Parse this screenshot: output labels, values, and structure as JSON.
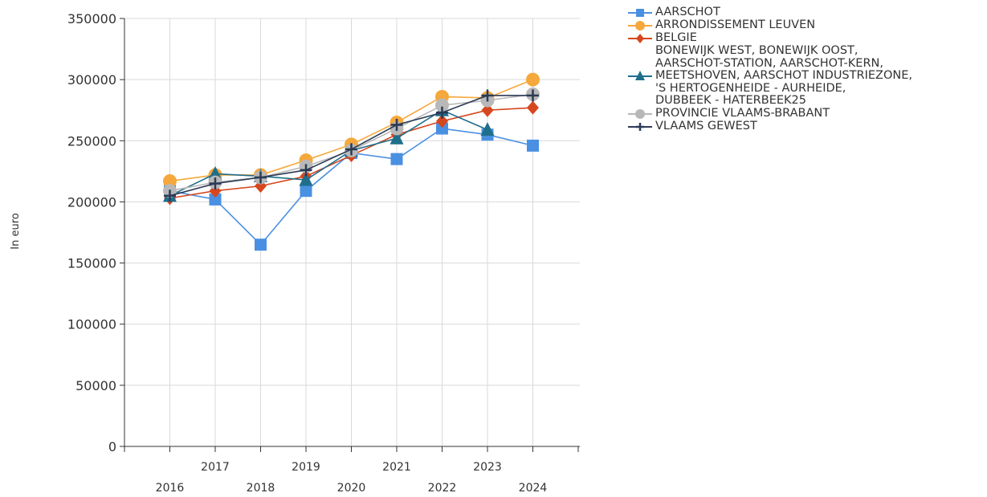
{
  "chart_data": {
    "type": "line",
    "title": "",
    "xlabel": "",
    "ylabel": "In euro",
    "x": [
      "2016",
      "2017",
      "2018",
      "2019",
      "2020",
      "2021",
      "2022",
      "2023",
      "2024"
    ],
    "ylim": [
      0,
      350000
    ],
    "yticks": [
      0,
      50000,
      100000,
      150000,
      200000,
      250000,
      300000,
      350000
    ],
    "ytick_labels": [
      "0",
      "50000",
      "100000",
      "150000",
      "200000",
      "250000",
      "300000",
      "350000"
    ],
    "grid": true,
    "legend_position": "right",
    "series": [
      {
        "name": "AARSCHOT",
        "color": "#4a90e2",
        "marker": "square",
        "values": [
          209000,
          202000,
          165000,
          209000,
          240000,
          235000,
          260000,
          255000,
          246000
        ]
      },
      {
        "name": "ARRONDISSEMENT LEUVEN",
        "color": "#f5a83b",
        "marker": "circle",
        "values": [
          217000,
          222000,
          222000,
          234000,
          247000,
          265000,
          286000,
          285000,
          300000
        ]
      },
      {
        "name": "BELGIE",
        "color": "#d6471f",
        "marker": "diamond",
        "values": [
          203000,
          209000,
          213000,
          221000,
          238000,
          255000,
          266000,
          275000,
          277000
        ]
      },
      {
        "name": "BONEWIJK WEST, BONEWIJK OOST,\nAARSCHOT-STATION, AARSCHOT-KERN,\nMEETSHOVEN, AARSCHOT INDUSTRIEZONE,\n'S HERTOGENHEIDE - AURHEIDE,\nDUBBEEK - HATERBEEK25",
        "color": "#1f6e8c",
        "marker": "triangle",
        "values": [
          205000,
          223000,
          221000,
          218000,
          242000,
          252000,
          275000,
          259000,
          null
        ]
      },
      {
        "name": "PROVINCIE VLAAMS-BRABANT",
        "color": "#b8b8b8",
        "marker": "circle",
        "values": [
          209000,
          216000,
          220000,
          229000,
          242000,
          260000,
          279000,
          283000,
          288000
        ]
      },
      {
        "name": "VLAAMS GEWEST",
        "color": "#2b3a55",
        "marker": "plus",
        "values": [
          205000,
          215000,
          220000,
          226000,
          243000,
          263000,
          273000,
          287000,
          287000
        ]
      }
    ]
  }
}
